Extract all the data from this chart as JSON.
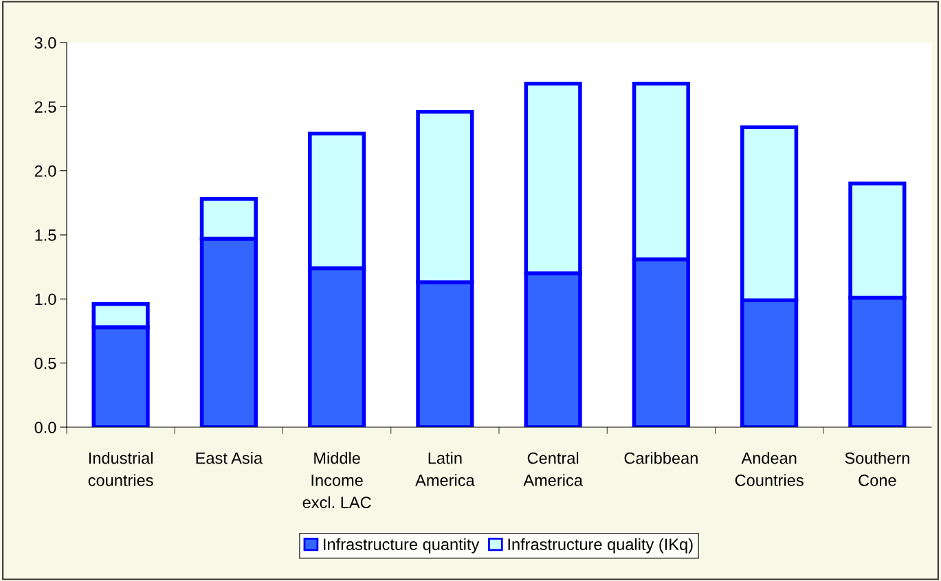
{
  "chart_data": {
    "type": "bar",
    "stacked": true,
    "categories": [
      "Industrial\ncountries",
      "East Asia",
      "Middle\nIncome\nexcl. LAC",
      "Latin\nAmerica",
      "Central\nAmerica",
      "Caribbean",
      "Andean\nCountries",
      "Southern\nCone"
    ],
    "series": [
      {
        "name": "Infrastructure quantity",
        "color": "#3366ff",
        "values": [
          0.78,
          1.47,
          1.24,
          1.13,
          1.2,
          1.31,
          0.99,
          1.01
        ]
      },
      {
        "name": "Infrastructure quality (IKq)",
        "color": "#ccffff",
        "values": [
          0.18,
          0.31,
          1.05,
          1.33,
          1.48,
          1.37,
          1.35,
          0.89
        ]
      }
    ],
    "ylim": [
      0,
      3
    ],
    "yticks": [
      {
        "value": 0,
        "label": "0.0"
      },
      {
        "value": 0.5,
        "label": "0.5"
      },
      {
        "value": 1,
        "label": "1.0"
      },
      {
        "value": 1.5,
        "label": "1.5"
      },
      {
        "value": 2,
        "label": "2.0"
      },
      {
        "value": 2.5,
        "label": "2.5"
      },
      {
        "value": 3,
        "label": "3.0"
      }
    ],
    "grid": false,
    "legend": "bottom"
  }
}
